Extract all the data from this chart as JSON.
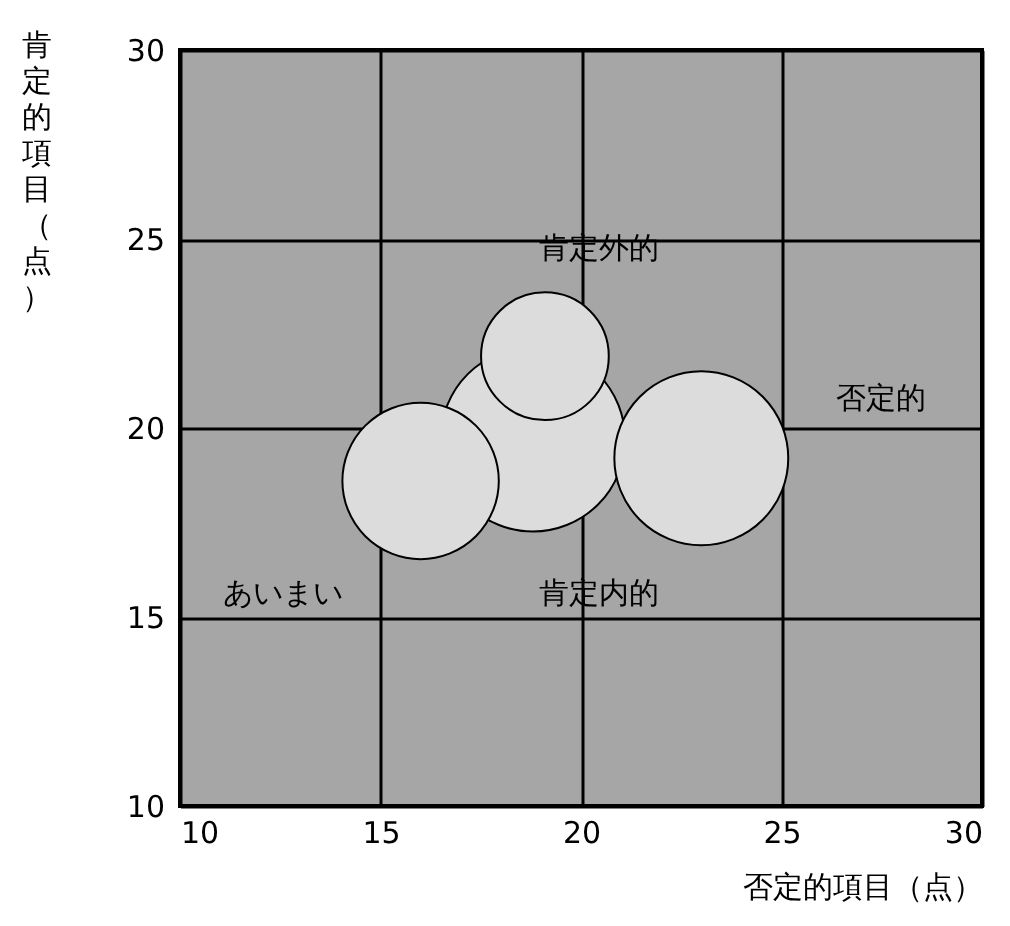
{
  "chart_data": {
    "type": "bubble",
    "xlabel": "否定的項目（点）",
    "ylabel": "肯定的項目（点）",
    "xlim": [
      10,
      30
    ],
    "ylim": [
      10,
      30
    ],
    "xticks": [
      10,
      15,
      20,
      25,
      30
    ],
    "yticks": [
      10,
      15,
      20,
      25,
      30
    ],
    "grid": true,
    "series": [
      {
        "name": "肯定内的",
        "color": "#dcdcdc",
        "x": [
          18.8
        ],
        "values": [
          19.7
        ],
        "sizes": [
          1
        ]
      },
      {
        "name": "あいまい",
        "color": "#dcdcdc",
        "x": [
          16.0
        ],
        "values": [
          18.6
        ],
        "sizes": [
          0.72
        ]
      },
      {
        "name": "否定的",
        "color": "#dcdcdc",
        "x": [
          23.0
        ],
        "values": [
          19.2
        ],
        "sizes": [
          0.89
        ]
      },
      {
        "name": "肯定外的",
        "color": "#dcdcdc",
        "x": [
          19.1
        ],
        "values": [
          21.9
        ],
        "sizes": [
          0.48
        ]
      }
    ]
  }
}
